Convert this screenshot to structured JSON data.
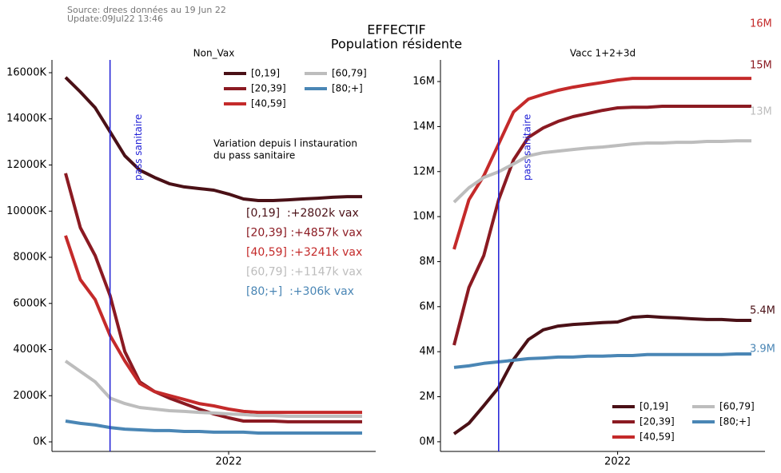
{
  "source": "Source: drees données au 19 Jun 22",
  "update": "Update:09Jul22 13:46",
  "title": "EFFECTIF",
  "subtitle": "Population résidente",
  "chart_data": [
    {
      "type": "line",
      "title": "Non_Vax",
      "categories": [
        null,
        null,
        null,
        null,
        null,
        null,
        null,
        null,
        null,
        null,
        null,
        "2022",
        null,
        null,
        null,
        null,
        null,
        null,
        null,
        null,
        null
      ],
      "ylim": [
        -415,
        16554
      ],
      "yticks": [
        {
          "value": 0,
          "label": "0K"
        },
        {
          "value": 2000,
          "label": "2000K"
        },
        {
          "value": 4000,
          "label": "4000K"
        },
        {
          "value": 6000,
          "label": "6000K"
        },
        {
          "value": 8000,
          "label": "8000K"
        },
        {
          "value": 10000,
          "label": "10000K"
        },
        {
          "value": 12000,
          "label": "12000K"
        },
        {
          "value": 14000,
          "label": "14000K"
        },
        {
          "value": 16000,
          "label": "16000K"
        }
      ],
      "vline": {
        "category": 3,
        "label": "pass sanitaire",
        "color": "#1f1fd6"
      },
      "legend": "upper right",
      "note": [
        "Variation depuis l instauration",
        "du pass sanitaire"
      ],
      "annotations": [
        "[0,19]  :+2802k vax",
        "[20,39] :+4857k vax",
        "[40,59] :+3241k vax",
        "[60,79] :+1147k vax",
        "[80;+]  :+306k vax"
      ],
      "series": [
        {
          "name": "[0,19]",
          "color": "#4a1016",
          "values": [
            15800,
            15170,
            14480,
            13440,
            12400,
            11780,
            11460,
            11190,
            11050,
            10980,
            10910,
            10740,
            10530,
            10460,
            10460,
            10490,
            10530,
            10560,
            10600,
            10630,
            10630
          ]
        },
        {
          "name": "[20,39]",
          "color": "#8b1a22",
          "values": [
            11640,
            9280,
            8070,
            6340,
            3910,
            2600,
            2180,
            1900,
            1660,
            1420,
            1210,
            1040,
            900,
            900,
            900,
            870,
            870,
            870,
            870,
            870,
            870
          ]
        },
        {
          "name": "[40,59]",
          "color": "#c42a2a",
          "values": [
            8940,
            7030,
            6160,
            4610,
            3500,
            2530,
            2180,
            2010,
            1840,
            1660,
            1560,
            1420,
            1320,
            1280,
            1280,
            1280,
            1280,
            1280,
            1280,
            1280,
            1280
          ]
        },
        {
          "name": "[60,79]",
          "color": "#bdbdbd",
          "values": [
            3500,
            3050,
            2600,
            1900,
            1660,
            1490,
            1420,
            1350,
            1320,
            1280,
            1250,
            1210,
            1180,
            1140,
            1140,
            1110,
            1110,
            1110,
            1110,
            1110,
            1110
          ]
        },
        {
          "name": "[80;+]",
          "color": "#4a86b5",
          "values": [
            900,
            800,
            730,
            620,
            550,
            520,
            490,
            490,
            450,
            450,
            420,
            420,
            420,
            380,
            380,
            380,
            380,
            380,
            380,
            380,
            380
          ]
        }
      ]
    },
    {
      "type": "line",
      "title": "Vacc 1+2+3d",
      "categories": [
        null,
        null,
        null,
        null,
        null,
        null,
        null,
        null,
        null,
        null,
        null,
        "2022",
        null,
        null,
        null,
        null,
        null,
        null,
        null,
        null,
        null
      ],
      "ylim": [
        -0.43,
        16.96
      ],
      "yticks": [
        {
          "value": 0,
          "label": "0M"
        },
        {
          "value": 2,
          "label": "2M"
        },
        {
          "value": 4,
          "label": "4M"
        },
        {
          "value": 6,
          "label": "6M"
        },
        {
          "value": 8,
          "label": "8M"
        },
        {
          "value": 10,
          "label": "10M"
        },
        {
          "value": 12,
          "label": "12M"
        },
        {
          "value": 14,
          "label": "14M"
        },
        {
          "value": 16,
          "label": "16M"
        }
      ],
      "vline": {
        "category": 3,
        "label": "pass sanitaire",
        "color": "#1f1fd6"
      },
      "legend": "lower right",
      "end_labels": [
        "5.4M",
        "15M",
        "16M",
        "13M",
        "3.9M"
      ],
      "series": [
        {
          "name": "[0,19]",
          "color": "#4a1016",
          "values": [
            0.35,
            0.82,
            1.6,
            2.41,
            3.65,
            4.54,
            4.97,
            5.14,
            5.21,
            5.25,
            5.29,
            5.32,
            5.53,
            5.57,
            5.53,
            5.5,
            5.46,
            5.43,
            5.43,
            5.39,
            5.39
          ]
        },
        {
          "name": "[20,39]",
          "color": "#8b1a22",
          "values": [
            4.29,
            6.85,
            8.27,
            10.75,
            12.52,
            13.52,
            13.94,
            14.23,
            14.44,
            14.58,
            14.72,
            14.83,
            14.86,
            14.86,
            14.9,
            14.9,
            14.9,
            14.9,
            14.9,
            14.9,
            14.9
          ]
        },
        {
          "name": "[40,59]",
          "color": "#c42a2a",
          "values": [
            8.55,
            10.75,
            11.81,
            13.23,
            14.65,
            15.22,
            15.43,
            15.61,
            15.75,
            15.86,
            15.96,
            16.07,
            16.14,
            16.14,
            16.14,
            16.14,
            16.14,
            16.14,
            16.14,
            16.14,
            16.14
          ]
        },
        {
          "name": "[60,79]",
          "color": "#bdbdbd",
          "values": [
            10.64,
            11.28,
            11.74,
            11.99,
            12.34,
            12.7,
            12.84,
            12.91,
            12.98,
            13.05,
            13.09,
            13.16,
            13.23,
            13.27,
            13.27,
            13.3,
            13.3,
            13.34,
            13.34,
            13.37,
            13.37
          ]
        },
        {
          "name": "[80;+]",
          "color": "#4a86b5",
          "values": [
            3.3,
            3.37,
            3.48,
            3.55,
            3.62,
            3.69,
            3.72,
            3.76,
            3.76,
            3.8,
            3.8,
            3.83,
            3.83,
            3.87,
            3.87,
            3.87,
            3.87,
            3.87,
            3.87,
            3.9,
            3.9
          ]
        }
      ]
    }
  ]
}
